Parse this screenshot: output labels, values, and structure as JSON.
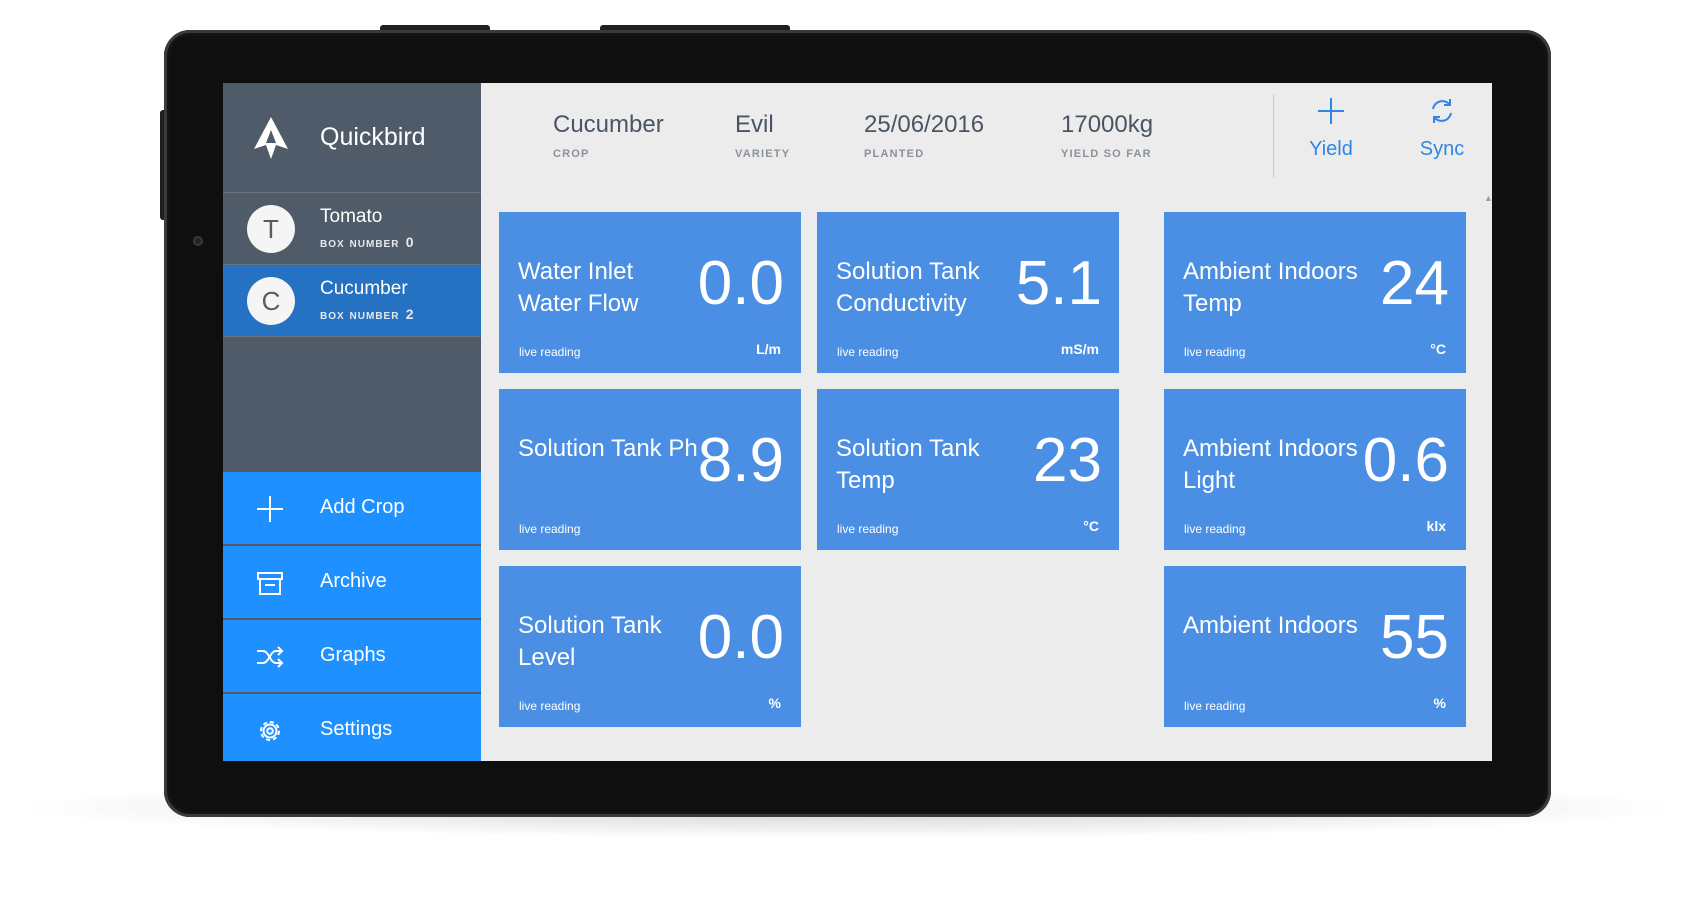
{
  "app": {
    "name": "Quickbird"
  },
  "crops": [
    {
      "initial": "T",
      "name": "Tomato",
      "box_label": "box number",
      "box_number": "0"
    },
    {
      "initial": "C",
      "name": "Cucumber",
      "box_label": "box number",
      "box_number": "2"
    }
  ],
  "nav": {
    "add_crop": "Add Crop",
    "archive": "Archive",
    "graphs": "Graphs",
    "settings": "Settings"
  },
  "header": {
    "crop": {
      "value": "Cucumber",
      "label": "CROP"
    },
    "variety": {
      "value": "Evil",
      "label": "VARIETY"
    },
    "planted": {
      "value": "25/06/2016",
      "label": "PLANTED"
    },
    "yield": {
      "value": "17000kg",
      "label": "YIELD SO FAR"
    },
    "actions": {
      "yield": "Yield",
      "sync": "Sync"
    }
  },
  "tiles": [
    {
      "title": "Water Inlet Water Flow",
      "value": "0.0",
      "reading": "live reading",
      "unit": "L/m"
    },
    {
      "title": "Solution Tank Conductivity",
      "value": "5.1",
      "reading": "live reading",
      "unit": "mS/m"
    },
    {
      "title": "Ambient Indoors Temp",
      "value": "24",
      "reading": "live reading",
      "unit": "°C"
    },
    {
      "title": "Solution Tank Ph",
      "value": "8.9",
      "reading": "live reading",
      "unit": ""
    },
    {
      "title": "Solution Tank Temp",
      "value": "23",
      "reading": "live reading",
      "unit": "°C"
    },
    {
      "title": "Ambient Indoors Light",
      "value": "0.6",
      "reading": "live reading",
      "unit": "klx"
    },
    {
      "title": "Solution Tank Level",
      "value": "0.0",
      "reading": "live reading",
      "unit": "%"
    },
    {
      "title": "Ambient Indoors",
      "value": "55",
      "reading": "live reading",
      "unit": "%"
    }
  ],
  "icons": {
    "logo": "quickbird-logo-icon",
    "add": "plus-icon",
    "archive": "archive-box-icon",
    "graphs": "shuffle-icon",
    "settings": "gear-icon",
    "yield": "plus-icon",
    "sync": "sync-icon"
  },
  "colors": {
    "sidebar": "#4f5b69",
    "active_crop": "#2472c1",
    "nav_blue": "#1e90ff",
    "tile_blue": "#4a8fe3",
    "accent": "#2f86e5",
    "content_bg": "#ececec"
  }
}
